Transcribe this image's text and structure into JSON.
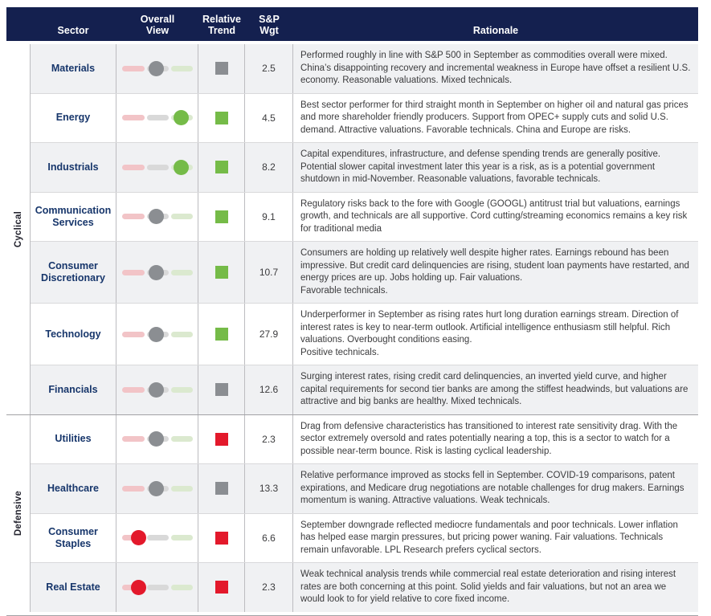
{
  "table": {
    "headers": [
      "Sector",
      "Overall\nView",
      "Relative\nTrend",
      "S&P\nWgt",
      "Rationale"
    ]
  },
  "colors": {
    "header_bg": "#14204f",
    "sector_text": "#17366b",
    "positive": "#75bb48",
    "neutral": "#8b8e92",
    "negative": "#e3192b",
    "row_alt_bg": "#f0f1f3"
  },
  "groups": [
    {
      "label": "Cyclical",
      "rows": [
        {
          "sector": "Materials",
          "overall_view": "neutral",
          "relative_trend": "neutral",
          "sp_wgt": "2.5",
          "rationale": "Performed roughly in line with S&P 500 in September as commodities overall were mixed. China’s disappointing recovery and incremental weakness in Europe have offset a resilient U.S. economy. Reasonable valuations. Mixed technicals."
        },
        {
          "sector": "Energy",
          "overall_view": "positive",
          "relative_trend": "positive",
          "sp_wgt": "4.5",
          "rationale": "Best sector performer for third straight month in September on higher oil and natural gas prices and more shareholder friendly producers. Support from OPEC+ supply cuts and solid U.S. demand. Attractive valuations. Favorable technicals. China and Europe are risks."
        },
        {
          "sector": "Industrials",
          "overall_view": "positive",
          "relative_trend": "positive",
          "sp_wgt": "8.2",
          "rationale": "Capital expenditures, infrastructure, and defense spending trends are generally positive. Potential slower capital investment later this year is a risk, as is a potential government shutdown in mid-November. Reasonable valuations, favorable technicals."
        },
        {
          "sector": "Communication Services",
          "overall_view": "neutral",
          "relative_trend": "positive",
          "sp_wgt": "9.1",
          "rationale": "Regulatory risks back to the fore with Google (GOOGL) antitrust trial but valuations, earnings growth, and technicals are all supportive. Cord cutting/streaming economics remains a key risk for traditional media"
        },
        {
          "sector": "Consumer Discretionary",
          "overall_view": "neutral",
          "relative_trend": "positive",
          "sp_wgt": "10.7",
          "rationale": "Consumers are holding up relatively well despite higher rates. Earnings rebound has been impressive. But credit card delinquencies are rising, student loan payments have restarted, and energy prices are up. Jobs holding up. Fair valuations.\nFavorable technicals."
        },
        {
          "sector": "Technology",
          "overall_view": "neutral",
          "relative_trend": "positive",
          "sp_wgt": "27.9",
          "rationale": "Underperformer in September as rising rates hurt long duration earnings stream. Direction of interest rates is key to near-term outlook. Artificial intelligence enthusiasm still helpful. Rich valuations. Overbought conditions easing.\nPositive technicals."
        },
        {
          "sector": "Financials",
          "overall_view": "neutral",
          "relative_trend": "neutral",
          "sp_wgt": "12.6",
          "rationale": "Surging interest rates, rising credit card delinquencies, an inverted yield curve, and higher capital requirements for second tier banks are among the stiffest headwinds, but valuations are attractive and big banks are healthy. Mixed technicals."
        }
      ]
    },
    {
      "label": "Defensive",
      "rows": [
        {
          "sector": "Utilities",
          "overall_view": "neutral",
          "relative_trend": "negative",
          "sp_wgt": "2.3",
          "rationale": "Drag from defensive characteristics has transitioned to interest rate sensitivity drag. With the sector extremely oversold and rates potentially nearing a top, this is a sector to watch for a possible near-term bounce. Risk is lasting cyclical leadership."
        },
        {
          "sector": "Healthcare",
          "overall_view": "neutral",
          "relative_trend": "neutral",
          "sp_wgt": "13.3",
          "rationale": "Relative performance improved as stocks fell in September. COVID-19 comparisons, patent expirations, and Medicare drug negotiations are notable challenges for drug makers. Earnings momentum is waning. Attractive valuations. Weak technicals."
        },
        {
          "sector": "Consumer Staples",
          "overall_view": "negative",
          "relative_trend": "negative",
          "sp_wgt": "6.6",
          "rationale": "September downgrade reflected mediocre fundamentals and poor technicals. Lower inflation has helped ease margin pressures, but pricing power waning. Fair valuations. Technicals remain unfavorable. LPL Research prefers cyclical sectors."
        },
        {
          "sector": "Real Estate",
          "overall_view": "negative",
          "relative_trend": "negative",
          "sp_wgt": "2.3",
          "rationale": "Weak technical analysis trends while commercial real estate deterioration and rising interest rates are both concerning at this point. Solid yields and fair valuations, but not an area we would look to for yield relative to core fixed income."
        }
      ]
    }
  ]
}
